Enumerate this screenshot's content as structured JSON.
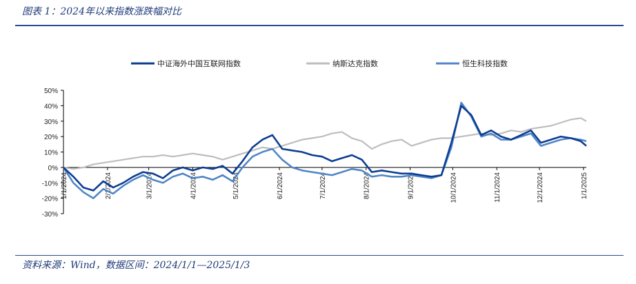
{
  "header": {
    "title": "图表 1：2024年以来指数涨跌幅对比"
  },
  "footer": {
    "source": "资料来源：Wind，数据区间：2024/1/1—2025/1/3"
  },
  "chart_data": {
    "type": "line",
    "title": "",
    "xlabel": "",
    "ylabel": "",
    "ylim": [
      -30,
      50
    ],
    "xlim": [
      "2024/1/1",
      "2025/1/3"
    ],
    "y_tick_labels": [
      "50%",
      "40%",
      "30%",
      "20%",
      "10%",
      "0%",
      "-10%",
      "-20%",
      "-30%"
    ],
    "y_tick_values": [
      50,
      40,
      30,
      20,
      10,
      0,
      -10,
      -20,
      -30
    ],
    "x_tick_labels": [
      "1/1/2024",
      "2/1/2024",
      "3/1/2024",
      "4/1/2024",
      "5/1/2024",
      "6/1/2024",
      "7/1/2024",
      "8/1/2024",
      "9/1/2024",
      "10/1/2024",
      "11/1/2024",
      "12/1/2024",
      "1/1/2025"
    ],
    "x_tick_dates": [
      "2024/1/1",
      "2024/2/1",
      "2024/3/1",
      "2024/4/1",
      "2024/5/1",
      "2024/6/1",
      "2024/7/1",
      "2024/8/1",
      "2024/9/1",
      "2024/10/1",
      "2024/11/1",
      "2024/12/1",
      "2025/1/1"
    ],
    "grid": false,
    "legend_position": "top",
    "series": [
      {
        "name": "中证海外中国互联网指数",
        "color": "#0d3d91",
        "x": [
          "2024/1/1",
          "2024/1/8",
          "2024/1/15",
          "2024/1/22",
          "2024/1/29",
          "2024/2/5",
          "2024/2/12",
          "2024/2/19",
          "2024/2/26",
          "2024/3/4",
          "2024/3/11",
          "2024/3/18",
          "2024/3/25",
          "2024/4/1",
          "2024/4/8",
          "2024/4/15",
          "2024/4/22",
          "2024/4/29",
          "2024/5/6",
          "2024/5/13",
          "2024/5/20",
          "2024/5/27",
          "2024/6/3",
          "2024/6/10",
          "2024/6/17",
          "2024/6/24",
          "2024/7/1",
          "2024/7/8",
          "2024/7/15",
          "2024/7/22",
          "2024/7/29",
          "2024/8/5",
          "2024/8/12",
          "2024/8/19",
          "2024/8/26",
          "2024/9/2",
          "2024/9/9",
          "2024/9/16",
          "2024/9/23",
          "2024/9/30",
          "2024/10/7",
          "2024/10/14",
          "2024/10/21",
          "2024/10/28",
          "2024/11/4",
          "2024/11/11",
          "2024/11/18",
          "2024/11/25",
          "2024/12/2",
          "2024/12/9",
          "2024/12/16",
          "2024/12/23",
          "2024/12/30",
          "2025/1/3"
        ],
        "y": [
          0,
          -6,
          -13,
          -15,
          -9,
          -13,
          -10,
          -6,
          -3,
          -4,
          -7,
          -2,
          0,
          -2,
          0,
          -1,
          1,
          -4,
          4,
          13,
          18,
          21,
          12,
          11,
          10,
          8,
          7,
          4,
          6,
          8,
          5,
          -3,
          -2,
          -3,
          -4,
          -4,
          -5,
          -6,
          -5,
          16,
          40,
          34,
          21,
          24,
          20,
          18,
          21,
          24,
          16,
          18,
          20,
          19,
          17,
          14
        ]
      },
      {
        "name": "纳斯达克指数",
        "color": "#bdbdbd",
        "x": [
          "2024/1/1",
          "2024/1/8",
          "2024/1/15",
          "2024/1/22",
          "2024/1/29",
          "2024/2/5",
          "2024/2/12",
          "2024/2/19",
          "2024/2/26",
          "2024/3/4",
          "2024/3/11",
          "2024/3/18",
          "2024/3/25",
          "2024/4/1",
          "2024/4/8",
          "2024/4/15",
          "2024/4/22",
          "2024/4/29",
          "2024/5/6",
          "2024/5/13",
          "2024/5/20",
          "2024/5/27",
          "2024/6/3",
          "2024/6/10",
          "2024/6/17",
          "2024/6/24",
          "2024/7/1",
          "2024/7/8",
          "2024/7/15",
          "2024/7/22",
          "2024/7/29",
          "2024/8/5",
          "2024/8/12",
          "2024/8/19",
          "2024/8/26",
          "2024/9/2",
          "2024/9/9",
          "2024/9/16",
          "2024/9/23",
          "2024/9/30",
          "2024/10/7",
          "2024/10/14",
          "2024/10/21",
          "2024/10/28",
          "2024/11/4",
          "2024/11/11",
          "2024/11/18",
          "2024/11/25",
          "2024/12/2",
          "2024/12/9",
          "2024/12/16",
          "2024/12/23",
          "2024/12/30",
          "2025/1/3"
        ],
        "y": [
          0,
          -1,
          0,
          2,
          3,
          4,
          5,
          6,
          7,
          7,
          8,
          7,
          8,
          9,
          8,
          7,
          5,
          7,
          9,
          11,
          13,
          12,
          14,
          16,
          18,
          19,
          20,
          22,
          23,
          19,
          17,
          12,
          15,
          17,
          18,
          14,
          16,
          18,
          19,
          19,
          20,
          21,
          22,
          21,
          22,
          24,
          23,
          25,
          26,
          27,
          29,
          31,
          32,
          30
        ]
      },
      {
        "name": "恒生科技指数",
        "color": "#4f86c6",
        "x": [
          "2024/1/1",
          "2024/1/8",
          "2024/1/15",
          "2024/1/22",
          "2024/1/29",
          "2024/2/5",
          "2024/2/12",
          "2024/2/19",
          "2024/2/26",
          "2024/3/4",
          "2024/3/11",
          "2024/3/18",
          "2024/3/25",
          "2024/4/1",
          "2024/4/8",
          "2024/4/15",
          "2024/4/22",
          "2024/4/29",
          "2024/5/6",
          "2024/5/13",
          "2024/5/20",
          "2024/5/27",
          "2024/6/3",
          "2024/6/10",
          "2024/6/17",
          "2024/6/24",
          "2024/7/1",
          "2024/7/8",
          "2024/7/15",
          "2024/7/22",
          "2024/7/29",
          "2024/8/5",
          "2024/8/12",
          "2024/8/19",
          "2024/8/26",
          "2024/9/2",
          "2024/9/9",
          "2024/9/16",
          "2024/9/23",
          "2024/9/30",
          "2024/10/7",
          "2024/10/14",
          "2024/10/21",
          "2024/10/28",
          "2024/11/4",
          "2024/11/11",
          "2024/11/18",
          "2024/11/25",
          "2024/12/2",
          "2024/12/9",
          "2024/12/16",
          "2024/12/23",
          "2024/12/30",
          "2025/1/3"
        ],
        "y": [
          0,
          -10,
          -16,
          -20,
          -14,
          -17,
          -12,
          -8,
          -5,
          -8,
          -10,
          -6,
          -4,
          -7,
          -6,
          -8,
          -5,
          -9,
          0,
          7,
          10,
          12,
          5,
          0,
          -2,
          -3,
          -4,
          -5,
          -3,
          -1,
          -2,
          -6,
          -5,
          -6,
          -6,
          -5,
          -6,
          -7,
          -5,
          13,
          42,
          33,
          20,
          22,
          18,
          18,
          20,
          22,
          14,
          16,
          18,
          19,
          18,
          17
        ]
      }
    ]
  }
}
